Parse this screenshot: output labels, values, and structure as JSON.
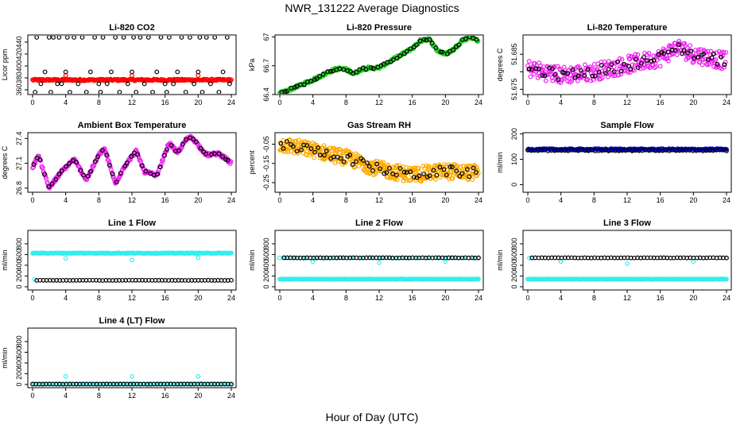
{
  "page": {
    "title": "NWR_131222  Average Diagnostics",
    "xlabel": "Hour of Day (UTC)"
  },
  "colors": {
    "black": "#000000",
    "red": "#ff0000",
    "green": "#22cc22",
    "magenta": "#ee22ee",
    "orange": "#ffaa00",
    "cyan": "#33eeee",
    "blue": "#0000cc"
  },
  "chart_data": [
    {
      "type": "scatter",
      "title": "Li-820 CO2",
      "ylabel": "Licor ppm",
      "xlim": [
        0,
        24
      ],
      "ylim": [
        352,
        452
      ],
      "xticks": [
        0,
        4,
        8,
        12,
        16,
        20,
        24
      ],
      "yticks": [
        360,
        380,
        400,
        420,
        440
      ],
      "series": [
        {
          "color": "red",
          "kind": "band",
          "x0": 0,
          "x1": 24,
          "y0": 375,
          "y1": 378,
          "n": 240
        },
        {
          "color": "red",
          "kind": "points",
          "x": [
            4,
            12,
            20
          ],
          "y": [
            384,
            384,
            384
          ]
        },
        {
          "color": "black",
          "kind": "points",
          "x": [
            0.3,
            0.5,
            1,
            1.5,
            2,
            2.2,
            2.5,
            3,
            3.2,
            3.5,
            4,
            4.2,
            4.5,
            5,
            5.5,
            6,
            6.5,
            7,
            7.5,
            8,
            8.2,
            8.5,
            9,
            9.5,
            10,
            10.5,
            11,
            11.5,
            12,
            12.2,
            12.5,
            13,
            13.5,
            14,
            14.5,
            15,
            15.5,
            16,
            16.2,
            16.5,
            17,
            17.5,
            18,
            18.5,
            19,
            19.5,
            20,
            20.2,
            20.5,
            21,
            21.5,
            22,
            22.5,
            23,
            23.5,
            23.8
          ],
          "y": [
            356,
            448,
            370,
            390,
            448,
            356,
            448,
            370,
            448,
            370,
            390,
            448,
            356,
            448,
            370,
            448,
            356,
            390,
            448,
            370,
            356,
            448,
            370,
            390,
            448,
            356,
            448,
            370,
            390,
            448,
            356,
            448,
            370,
            448,
            356,
            390,
            448,
            370,
            356,
            448,
            370,
            390,
            448,
            356,
            448,
            370,
            390,
            448,
            356,
            448,
            370,
            448,
            356,
            390,
            448,
            370
          ]
        }
      ]
    },
    {
      "type": "scatter",
      "title": "Li-820 Pressure",
      "ylabel": "kPa",
      "xlim": [
        0,
        24
      ],
      "ylim": [
        66.4,
        67.02
      ],
      "xticks": [
        0,
        4,
        8,
        12,
        16,
        20,
        24
      ],
      "yticks": [
        66.4,
        66.7,
        67.0
      ],
      "series": [
        {
          "color": "green",
          "kind": "trend",
          "x": [
            0,
            2,
            4,
            6,
            7,
            8,
            9,
            10,
            12,
            14,
            16,
            17,
            18,
            19,
            20,
            21,
            22,
            23,
            24
          ],
          "y": [
            66.41,
            66.48,
            66.55,
            66.64,
            66.67,
            66.66,
            66.62,
            66.67,
            66.68,
            66.78,
            66.88,
            66.96,
            66.98,
            66.86,
            66.82,
            66.87,
            66.96,
            67.0,
            66.96
          ],
          "n": 300,
          "jitter": 0.015
        },
        {
          "color": "black",
          "kind": "trend",
          "x": [
            0,
            2,
            4,
            6,
            7,
            8,
            9,
            10,
            12,
            14,
            16,
            17,
            18,
            19,
            20,
            21,
            22,
            23,
            24
          ],
          "y": [
            66.41,
            66.48,
            66.55,
            66.64,
            66.67,
            66.66,
            66.62,
            66.67,
            66.68,
            66.78,
            66.88,
            66.96,
            66.98,
            66.86,
            66.82,
            66.87,
            66.96,
            67.0,
            66.96
          ],
          "n": 60,
          "jitter": 0.01
        }
      ]
    },
    {
      "type": "scatter",
      "title": "Li-820 Temperature",
      "ylabel": "degrees C",
      "xlim": [
        0,
        24
      ],
      "ylim": [
        51.6735,
        51.6905
      ],
      "xticks": [
        0,
        4,
        8,
        12,
        16,
        20,
        24
      ],
      "yticks": [
        51.675,
        51.68,
        51.685
      ],
      "ytick_labels": [
        "51.675",
        "",
        "51.685"
      ],
      "series": [
        {
          "color": "magenta",
          "kind": "trend",
          "x": [
            0,
            4,
            8,
            12,
            16,
            18,
            20,
            22,
            24
          ],
          "y": [
            51.681,
            51.679,
            51.68,
            51.682,
            51.684,
            51.687,
            51.685,
            51.684,
            51.683
          ],
          "n": 320,
          "jitter": 0.0025
        },
        {
          "color": "black",
          "kind": "trend",
          "x": [
            0,
            4,
            8,
            12,
            16,
            18,
            20,
            22,
            24
          ],
          "y": [
            51.681,
            51.679,
            51.68,
            51.682,
            51.684,
            51.687,
            51.685,
            51.684,
            51.683
          ],
          "n": 60,
          "jitter": 0.0015
        }
      ]
    },
    {
      "type": "scatter",
      "title": "Ambient Box Temperature",
      "ylabel": "degrees C",
      "xlim": [
        0,
        24
      ],
      "ylim": [
        26.75,
        27.47
      ],
      "xticks": [
        0,
        4,
        8,
        12,
        16,
        20,
        24
      ],
      "yticks": [
        26.8,
        27.1,
        27.4
      ],
      "series": [
        {
          "color": "magenta",
          "kind": "trend",
          "x": [
            0,
            0.7,
            2,
            3.5,
            5,
            6.5,
            8,
            8.7,
            10,
            11,
            12.5,
            13.5,
            15,
            16.5,
            17.5,
            18.5,
            19.2,
            21,
            22.5,
            24
          ],
          "y": [
            27.05,
            27.2,
            26.8,
            27.0,
            27.15,
            26.9,
            27.2,
            27.28,
            26.85,
            27.05,
            27.25,
            27.0,
            26.95,
            27.35,
            27.22,
            27.38,
            27.42,
            27.2,
            27.22,
            27.1
          ],
          "n": 320,
          "jitter": 0.02
        },
        {
          "color": "black",
          "kind": "trend",
          "x": [
            0,
            0.7,
            2,
            3.5,
            5,
            6.5,
            8,
            8.7,
            10,
            11,
            12.5,
            13.5,
            15,
            16.5,
            17.5,
            18.5,
            19.2,
            21,
            22.5,
            24
          ],
          "y": [
            27.05,
            27.2,
            26.8,
            27.0,
            27.15,
            26.9,
            27.2,
            27.28,
            26.85,
            27.05,
            27.25,
            27.0,
            26.95,
            27.35,
            27.22,
            27.38,
            27.42,
            27.2,
            27.22,
            27.1
          ],
          "n": 55,
          "jitter": 0.01
        }
      ]
    },
    {
      "type": "scatter",
      "title": "Gas Stream RH",
      "ylabel": "percent",
      "xlim": [
        0,
        24
      ],
      "ylim": [
        -0.3,
        0.01
      ],
      "xticks": [
        0,
        4,
        8,
        12,
        16,
        20,
        24
      ],
      "yticks": [
        -0.25,
        -0.15,
        -0.05
      ],
      "series": [
        {
          "color": "orange",
          "kind": "trend",
          "x": [
            0,
            4,
            8,
            12,
            16,
            20,
            24
          ],
          "y": [
            -0.05,
            -0.08,
            -0.12,
            -0.18,
            -0.21,
            -0.19,
            -0.2
          ],
          "n": 420,
          "jitter": 0.04
        },
        {
          "color": "black",
          "kind": "trend",
          "x": [
            0,
            4,
            8,
            12,
            16,
            20,
            24
          ],
          "y": [
            -0.05,
            -0.08,
            -0.12,
            -0.18,
            -0.21,
            -0.19,
            -0.2
          ],
          "n": 60,
          "jitter": 0.025
        }
      ]
    },
    {
      "type": "scatter",
      "title": "Sample Flow",
      "ylabel": "ml/min",
      "xlim": [
        0,
        24
      ],
      "ylim": [
        -30,
        205
      ],
      "xticks": [
        0,
        4,
        8,
        12,
        16,
        20,
        24
      ],
      "yticks": [
        0,
        100,
        200
      ],
      "series": [
        {
          "color": "blue",
          "kind": "band",
          "x0": 0,
          "x1": 24,
          "y0": 136,
          "y1": 142,
          "n": 240
        },
        {
          "color": "black",
          "kind": "band",
          "x0": 0,
          "x1": 24,
          "y0": 133,
          "y1": 137,
          "n": 60
        }
      ]
    },
    {
      "type": "scatter",
      "title": "Line 1 Flow",
      "ylabel": "ml/min",
      "xlim": [
        0,
        24
      ],
      "ylim": [
        -60,
        1050
      ],
      "xticks": [
        0,
        4,
        8,
        12,
        16,
        20,
        24
      ],
      "yticks": [
        0,
        200,
        400,
        600,
        800
      ],
      "series": [
        {
          "color": "cyan",
          "kind": "band",
          "x0": 0,
          "x1": 24,
          "y0": 620,
          "y1": 632,
          "n": 240
        },
        {
          "color": "cyan",
          "kind": "points",
          "x": [
            0.2,
            4,
            12,
            20
          ],
          "y": [
            140,
            530,
            500,
            540
          ]
        },
        {
          "color": "black",
          "kind": "band",
          "x0": 0.5,
          "x1": 24,
          "y0": 118,
          "y1": 122,
          "n": 60
        }
      ]
    },
    {
      "type": "scatter",
      "title": "Line 2 Flow",
      "ylabel": "ml/min",
      "xlim": [
        0,
        24
      ],
      "ylim": [
        -60,
        1050
      ],
      "xticks": [
        0,
        4,
        8,
        12,
        16,
        20,
        24
      ],
      "yticks": [
        0,
        200,
        400,
        600,
        800
      ],
      "series": [
        {
          "color": "cyan",
          "kind": "band",
          "x0": 0,
          "x1": 24,
          "y0": 138,
          "y1": 146,
          "n": 240
        },
        {
          "color": "cyan",
          "kind": "band",
          "x0": 0,
          "x1": 24,
          "y0": 535,
          "y1": 545,
          "n": 40
        },
        {
          "color": "cyan",
          "kind": "points",
          "x": [
            4,
            12,
            20
          ],
          "y": [
            470,
            450,
            470
          ]
        },
        {
          "color": "black",
          "kind": "band",
          "x0": 0.5,
          "x1": 24,
          "y0": 536,
          "y1": 542,
          "n": 60
        }
      ]
    },
    {
      "type": "scatter",
      "title": "Line 3 Flow",
      "ylabel": "ml/min",
      "xlim": [
        0,
        24
      ],
      "ylim": [
        -60,
        1050
      ],
      "xticks": [
        0,
        4,
        8,
        12,
        16,
        20,
        24
      ],
      "yticks": [
        0,
        200,
        400,
        600,
        800
      ],
      "series": [
        {
          "color": "cyan",
          "kind": "band",
          "x0": 0,
          "x1": 24,
          "y0": 138,
          "y1": 146,
          "n": 240
        },
        {
          "color": "cyan",
          "kind": "points",
          "x": [
            0.2,
            4,
            12,
            20
          ],
          "y": [
            535,
            470,
            430,
            470
          ]
        },
        {
          "color": "black",
          "kind": "band",
          "x0": 0.5,
          "x1": 24,
          "y0": 536,
          "y1": 542,
          "n": 60
        }
      ]
    },
    {
      "type": "scatter",
      "title": "Line 4 (LT) Flow",
      "ylabel": "ml/min",
      "xlim": [
        0,
        24
      ],
      "ylim": [
        -60,
        1050
      ],
      "xticks": [
        0,
        4,
        8,
        12,
        16,
        20,
        24
      ],
      "yticks": [
        0,
        200,
        400,
        600,
        800
      ],
      "series": [
        {
          "color": "cyan",
          "kind": "band",
          "x0": 0,
          "x1": 24,
          "y0": 8,
          "y1": 14,
          "n": 120
        },
        {
          "color": "cyan",
          "kind": "points",
          "x": [
            4,
            12,
            20
          ],
          "y": [
            150,
            150,
            150
          ]
        },
        {
          "color": "black",
          "kind": "band",
          "x0": 0,
          "x1": 24,
          "y0": 4,
          "y1": 8,
          "n": 60
        }
      ]
    }
  ]
}
